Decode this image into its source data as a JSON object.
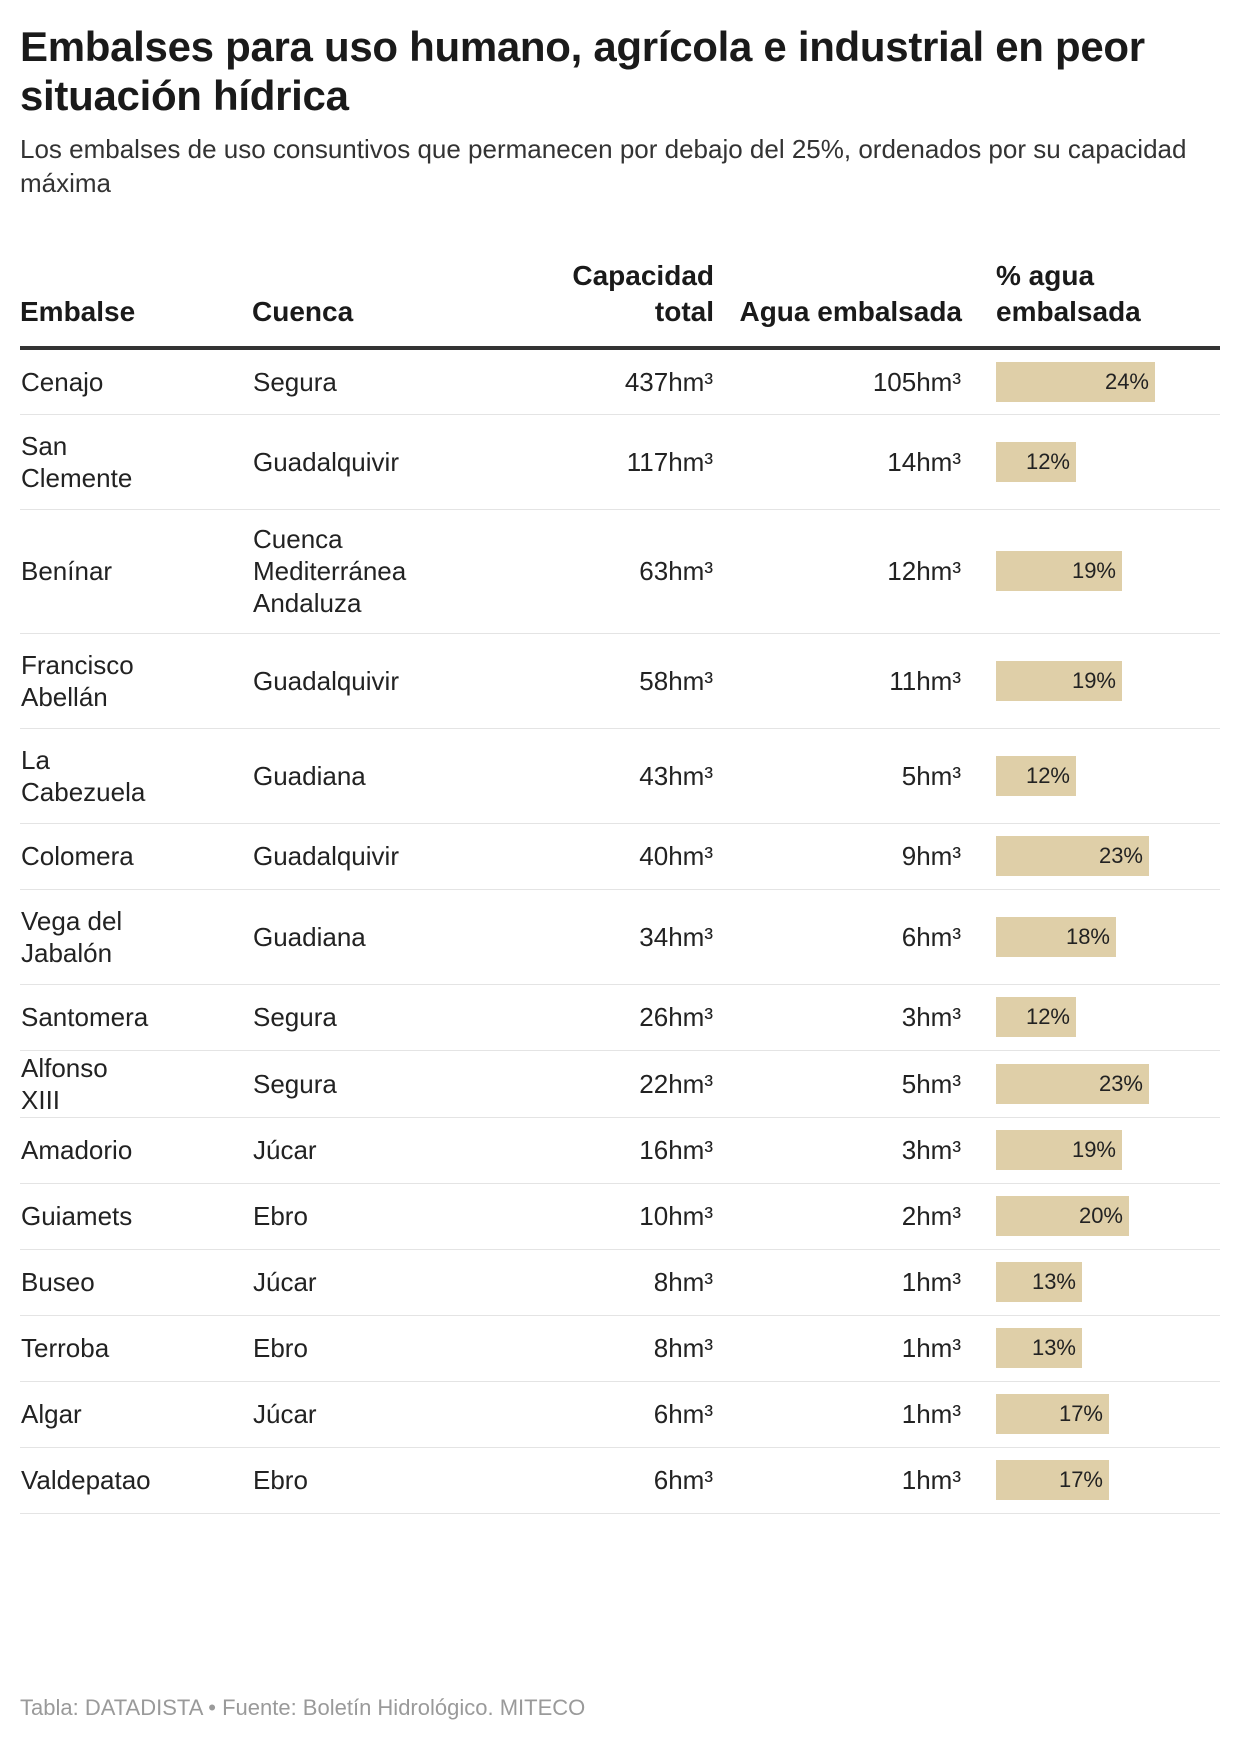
{
  "header": {
    "title": "Embalses para uso humano, agrícola e industrial en peor situación hídrica",
    "subtitle": "Los embalses de uso consuntivos que permanecen por debajo del 25%, ordenados por su capacidad máxima"
  },
  "table": {
    "columns": [
      "Embalse",
      "Cuenca",
      "Capacidad total",
      "Agua embalsada",
      "% agua embalsada"
    ]
  },
  "chart_data": {
    "type": "table",
    "title": "Embalses para uso humano, agrícola e industrial en peor situación hídrica",
    "subtitle": "Los embalses de uso consuntivos que permanecen por debajo del 25%, ordenados por su capacidad máxima",
    "bar_color": "#dfcfa8",
    "bar_max_percent": 25,
    "rows": [
      {
        "embalse": "Cenajo",
        "cuenca": "Segura",
        "capacidad": "437hm³",
        "agua": "105hm³",
        "pct_label": "24%",
        "pct": 24
      },
      {
        "embalse": "San Clemente",
        "cuenca": "Guadalquivir",
        "capacidad": "117hm³",
        "agua": "14hm³",
        "pct_label": "12%",
        "pct": 12
      },
      {
        "embalse": "Benínar",
        "cuenca": "Cuenca Mediterránea Andaluza",
        "capacidad": "63hm³",
        "agua": "12hm³",
        "pct_label": "19%",
        "pct": 19
      },
      {
        "embalse": "Francisco Abellán",
        "cuenca": "Guadalquivir",
        "capacidad": "58hm³",
        "agua": "11hm³",
        "pct_label": "19%",
        "pct": 19
      },
      {
        "embalse": "La Cabezuela",
        "cuenca": "Guadiana",
        "capacidad": "43hm³",
        "agua": "5hm³",
        "pct_label": "12%",
        "pct": 12
      },
      {
        "embalse": "Colomera",
        "cuenca": "Guadalquivir",
        "capacidad": "40hm³",
        "agua": "9hm³",
        "pct_label": "23%",
        "pct": 23
      },
      {
        "embalse": "Vega del Jabalón",
        "cuenca": "Guadiana",
        "capacidad": "34hm³",
        "agua": "6hm³",
        "pct_label": "18%",
        "pct": 18
      },
      {
        "embalse": "Santomera",
        "cuenca": "Segura",
        "capacidad": "26hm³",
        "agua": "3hm³",
        "pct_label": "12%",
        "pct": 12
      },
      {
        "embalse": "Alfonso XIII",
        "cuenca": "Segura",
        "capacidad": "22hm³",
        "agua": "5hm³",
        "pct_label": "23%",
        "pct": 23
      },
      {
        "embalse": "Amadorio",
        "cuenca": "Júcar",
        "capacidad": "16hm³",
        "agua": "3hm³",
        "pct_label": "19%",
        "pct": 19
      },
      {
        "embalse": "Guiamets",
        "cuenca": "Ebro",
        "capacidad": "10hm³",
        "agua": "2hm³",
        "pct_label": "20%",
        "pct": 20
      },
      {
        "embalse": "Buseo",
        "cuenca": "Júcar",
        "capacidad": "8hm³",
        "agua": "1hm³",
        "pct_label": "13%",
        "pct": 13
      },
      {
        "embalse": "Terroba",
        "cuenca": "Ebro",
        "capacidad": "8hm³",
        "agua": "1hm³",
        "pct_label": "13%",
        "pct": 13
      },
      {
        "embalse": "Algar",
        "cuenca": "Júcar",
        "capacidad": "6hm³",
        "agua": "1hm³",
        "pct_label": "17%",
        "pct": 17
      },
      {
        "embalse": "Valdepatao",
        "cuenca": "Ebro",
        "capacidad": "6hm³",
        "agua": "1hm³",
        "pct_label": "17%",
        "pct": 17
      }
    ]
  },
  "footer": {
    "text": "Tabla: DATADISTA • Fuente: Boletín Hidrológico. MITECO"
  }
}
